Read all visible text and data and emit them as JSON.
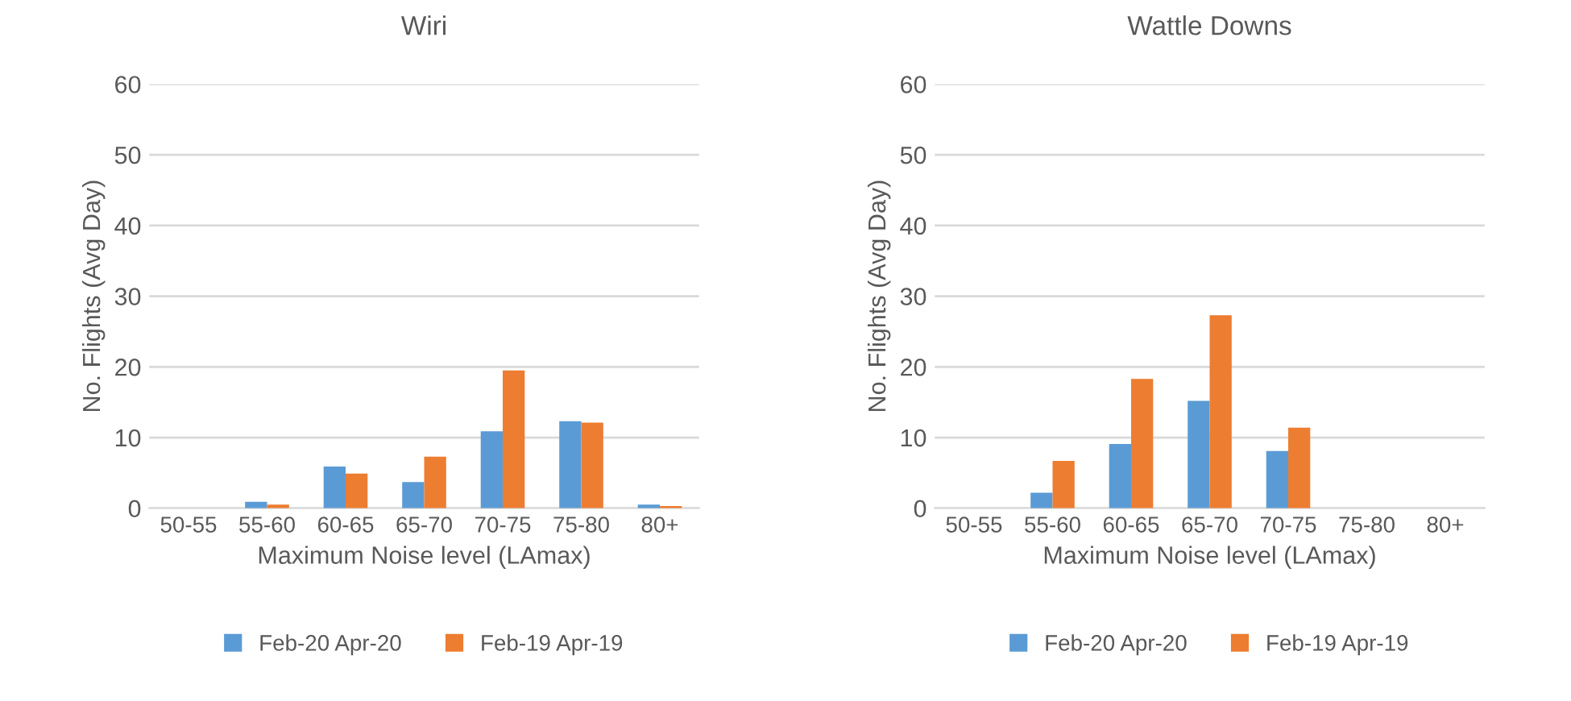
{
  "chart_data": [
    {
      "type": "bar",
      "title": "Wiri",
      "xlabel": "Maximum Noise level (LAmax)",
      "ylabel": "No. Flights (Avg Day)",
      "categories": [
        "50-55",
        "55-60",
        "60-65",
        "65-70",
        "70-75",
        "75-80",
        "80+"
      ],
      "series": [
        {
          "name": "Feb-20 Apr-20",
          "color": "#5b9bd5",
          "values": [
            0,
            0.9,
            5.9,
            3.7,
            10.9,
            12.3,
            0.5
          ]
        },
        {
          "name": "Feb-19 Apr-19",
          "color": "#ed7d31",
          "values": [
            0,
            0.5,
            4.9,
            7.3,
            19.5,
            12.1,
            0.3
          ]
        }
      ],
      "ylim": [
        0,
        60
      ],
      "yticks": [
        0,
        10,
        20,
        30,
        40,
        50,
        60
      ],
      "grid": "y",
      "legend": "bottom"
    },
    {
      "type": "bar",
      "title": "Wattle Downs",
      "xlabel": "Maximum Noise level (LAmax)",
      "ylabel": "No. Flights (Avg Day)",
      "categories": [
        "50-55",
        "55-60",
        "60-65",
        "65-70",
        "70-75",
        "75-80",
        "80+"
      ],
      "series": [
        {
          "name": "Feb-20 Apr-20",
          "color": "#5b9bd5",
          "values": [
            0,
            2.2,
            9.1,
            15.2,
            8.1,
            0,
            0
          ]
        },
        {
          "name": "Feb-19 Apr-19",
          "color": "#ed7d31",
          "values": [
            0,
            6.7,
            18.3,
            27.3,
            11.4,
            0,
            0
          ]
        }
      ],
      "ylim": [
        0,
        60
      ],
      "yticks": [
        0,
        10,
        20,
        30,
        40,
        50,
        60
      ],
      "grid": "y",
      "legend": "bottom"
    }
  ]
}
